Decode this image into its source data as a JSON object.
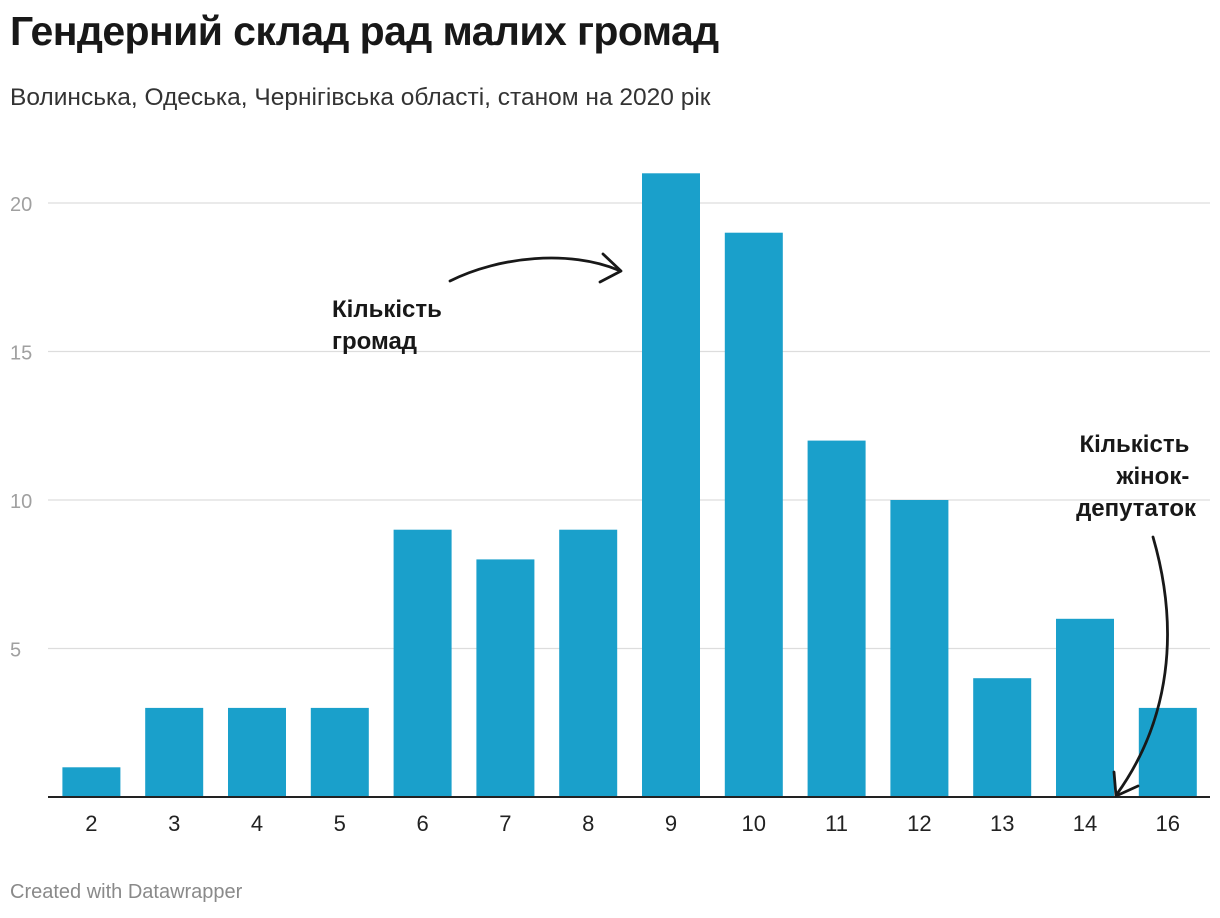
{
  "header": {
    "title": "Гендерний склад рад малих громад",
    "subtitle": "Волинська, Одеська, Чернігівська області, станом на 2020 рік"
  },
  "footer": {
    "credit": "Created with Datawrapper"
  },
  "colors": {
    "bar": "#1aa0cb",
    "grid": "#dddddd",
    "axis": "#222222",
    "tick_text": "#222222",
    "y_tick_text": "#a0a0a0",
    "annotation": "#181818"
  },
  "chart_data": {
    "type": "bar",
    "title": "Гендерний склад рад малих громад",
    "subtitle": "Волинська, Одеська, Чернігівська області, станом на 2020 рік",
    "xlabel": "Кількість жінок-депутаток",
    "ylabel": "Кількість громад",
    "categories": [
      "2",
      "3",
      "4",
      "5",
      "6",
      "7",
      "8",
      "9",
      "10",
      "11",
      "12",
      "13",
      "14",
      "16"
    ],
    "values": [
      1,
      3,
      3,
      3,
      9,
      8,
      9,
      21,
      19,
      12,
      10,
      4,
      6,
      3
    ],
    "ylim": [
      0,
      21
    ],
    "yticks": [
      5,
      10,
      15,
      20
    ],
    "grid": true,
    "annotations": [
      {
        "lines": [
          "Кількість",
          "громад"
        ],
        "points_to": "bars"
      },
      {
        "lines": [
          "Кількість",
          "жінок-",
          "депутаток"
        ],
        "points_to": "x-axis"
      }
    ]
  }
}
